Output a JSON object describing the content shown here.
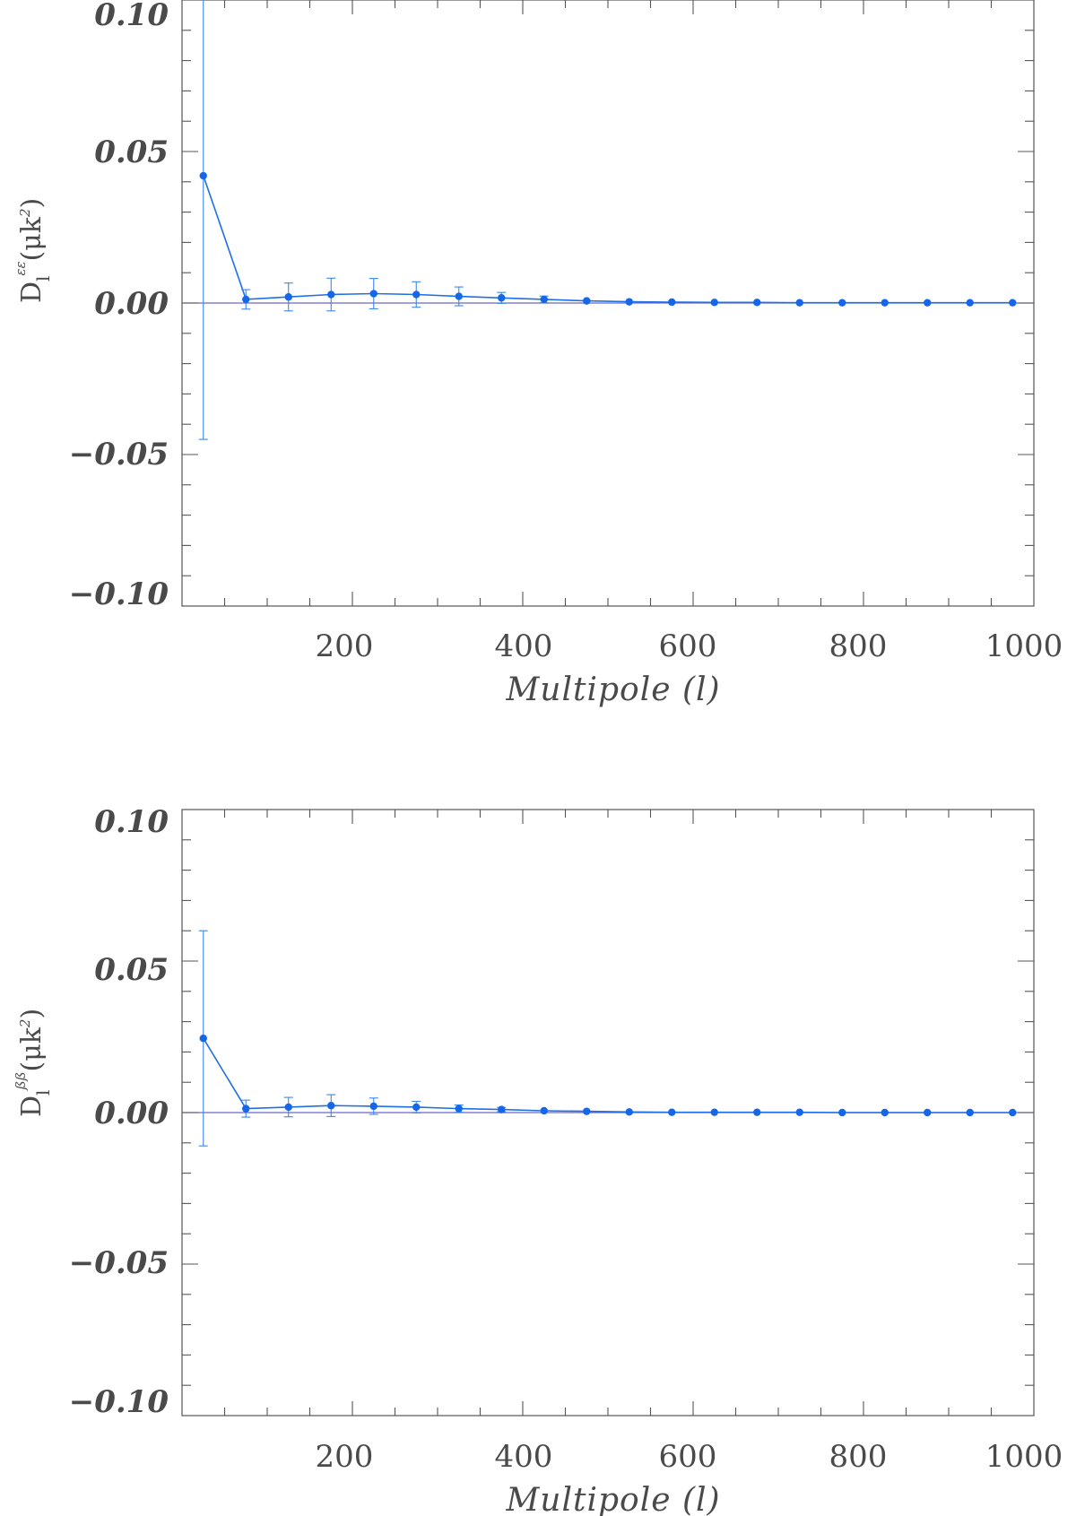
{
  "colors": {
    "series": "#1566e8",
    "error_bar": "#3c86ee",
    "zero_line": "#6b67c9",
    "axes": "#555555",
    "text": "#4a4a4a"
  },
  "chart_data": [
    {
      "type": "scatter",
      "title": "",
      "xlabel": "Multipole (l)",
      "ylabel": {
        "base": "D",
        "sub": "l",
        "sup": "εε",
        "rest": "(μk",
        "pow": "2",
        "close": ")"
      },
      "xlim": [
        0,
        1000
      ],
      "ylim": [
        -0.1,
        0.1
      ],
      "x_major_ticks": [
        200,
        400,
        600,
        800,
        1000
      ],
      "x_tick_labels": [
        "200",
        "400",
        "600",
        "800",
        "1000"
      ],
      "y_major_ticks": [
        0.1,
        0.05,
        0.0,
        -0.05,
        -0.1
      ],
      "y_tick_labels": [
        "0.10",
        "0.05",
        "0.00",
        "−0.05",
        "−0.10"
      ],
      "reference_line_y": 0.0,
      "x": [
        25,
        75,
        125,
        175,
        225,
        275,
        325,
        375,
        425,
        475,
        525,
        575,
        625,
        675,
        725,
        775,
        825,
        875,
        925,
        975
      ],
      "y": [
        0.042,
        0.0012,
        0.002,
        0.0028,
        0.0031,
        0.0028,
        0.0022,
        0.0017,
        0.0012,
        0.0007,
        0.0004,
        0.0003,
        0.0002,
        0.0002,
        0.0001,
        0.0001,
        0.0001,
        0.0001,
        0.0001,
        0.0001
      ],
      "err": [
        0.087,
        0.0032,
        0.0046,
        0.0054,
        0.005,
        0.0042,
        0.0031,
        0.0018,
        0.0011,
        0.0,
        0.0,
        0.0,
        0.0,
        0.0,
        0.0,
        0.0,
        0.0,
        0.0,
        0.0,
        0.0
      ]
    },
    {
      "type": "scatter",
      "title": "",
      "xlabel": "Multipole (l)",
      "ylabel": {
        "base": "D",
        "sub": "l",
        "sup": "ßß",
        "rest": "(μk",
        "pow": "2",
        "close": ")"
      },
      "xlim": [
        0,
        1000
      ],
      "ylim": [
        -0.1,
        0.1
      ],
      "x_major_ticks": [
        200,
        400,
        600,
        800,
        1000
      ],
      "x_tick_labels": [
        "200",
        "400",
        "600",
        "800",
        "1000"
      ],
      "y_major_ticks": [
        0.1,
        0.05,
        0.0,
        -0.05,
        -0.1
      ],
      "y_tick_labels": [
        "0.10",
        "0.05",
        "0.00",
        "−0.05",
        "−0.10"
      ],
      "reference_line_y": 0.0,
      "x": [
        25,
        75,
        125,
        175,
        225,
        275,
        325,
        375,
        425,
        475,
        525,
        575,
        625,
        675,
        725,
        775,
        825,
        875,
        925,
        975
      ],
      "y": [
        0.0245,
        0.0013,
        0.0018,
        0.0023,
        0.0021,
        0.0018,
        0.0013,
        0.001,
        0.0006,
        0.0004,
        0.0002,
        0.0001,
        0.0001,
        0.0001,
        0.0001,
        0.0,
        0.0,
        0.0,
        0.0,
        0.0
      ],
      "err": [
        0.0355,
        0.0028,
        0.0032,
        0.0036,
        0.0027,
        0.0019,
        0.0012,
        0.0007,
        0.0,
        0.0,
        0.0,
        0.0,
        0.0,
        0.0,
        0.0,
        0.0,
        0.0,
        0.0,
        0.0,
        0.0
      ]
    }
  ]
}
